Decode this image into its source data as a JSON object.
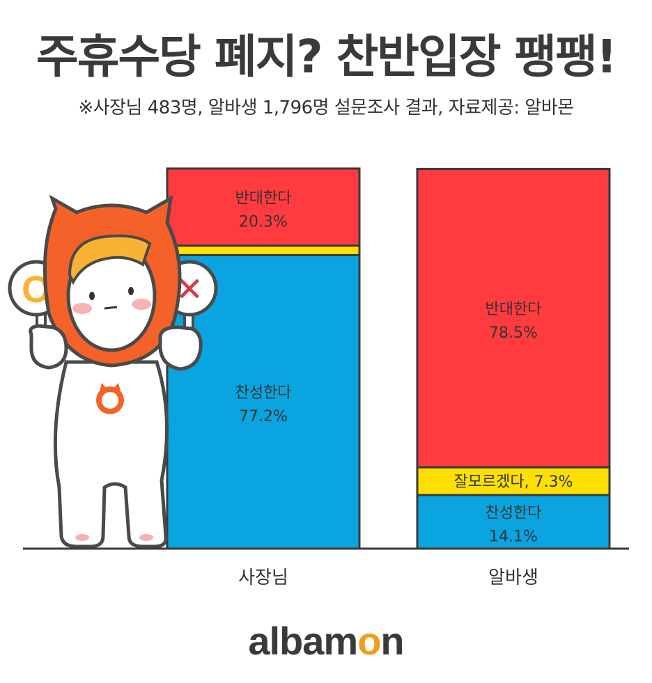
{
  "header": {
    "title": "주휴수당 폐지? 찬반입장 팽팽!",
    "subtitle": "※사장님 483명, 알바생 1,796명 설문조사 결과, 자료제공: 알바몬"
  },
  "chart_data": {
    "type": "bar",
    "stacked": true,
    "title": "주휴수당 폐지? 찬반입장 팽팽!",
    "subtitle": "※사장님 483명, 알바생 1,796명 설문조사 결과, 자료제공: 알바몬",
    "categories": [
      "사장님",
      "알바생"
    ],
    "series": [
      {
        "name": "찬성한다",
        "values": [
          77.2,
          14.1
        ],
        "labels": [
          "77.2%",
          "14.1%"
        ],
        "color": "#0aa5e0"
      },
      {
        "name": "잘모르겠다",
        "values": [
          2.5,
          7.3
        ],
        "labels": [
          "",
          "7.3%"
        ],
        "color": "#ffdf00"
      },
      {
        "name": "반대한다",
        "values": [
          20.3,
          78.5
        ],
        "labels": [
          "20.3%",
          "78.5%"
        ],
        "color": "#ff3b3f"
      }
    ],
    "ylim": [
      0,
      100
    ],
    "grid": false,
    "legend": "none"
  },
  "mascot": {
    "o_mark": "O",
    "x_mark": "✕"
  },
  "logo": {
    "text_start": "albam",
    "text_accent": "o",
    "text_end": "n"
  },
  "colors": {
    "mascot_orange": "#f4622a",
    "hair": "#f9b233",
    "outline": "#4a4a4a",
    "cheek": "#f7b3b3"
  }
}
